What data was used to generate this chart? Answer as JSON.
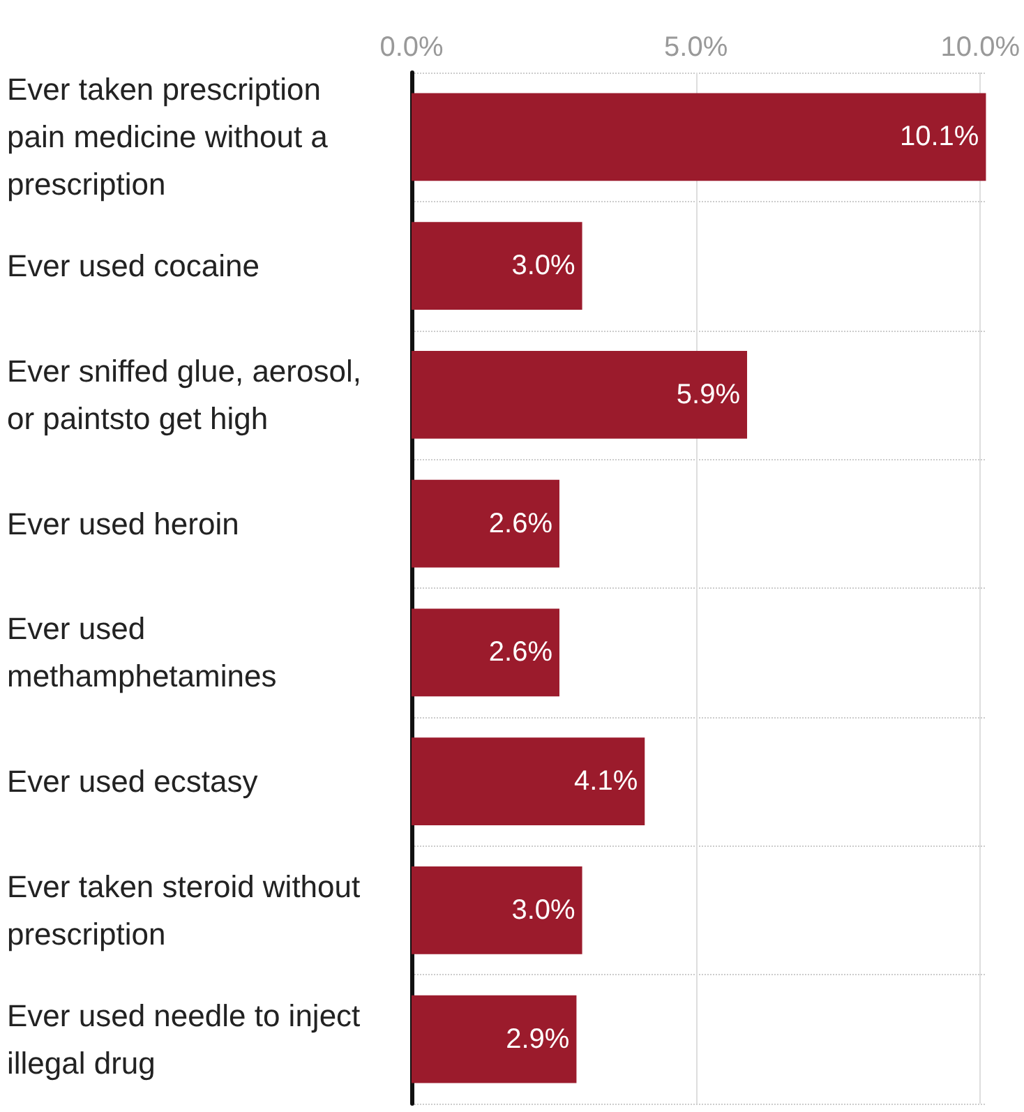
{
  "chart_data": {
    "type": "bar",
    "orientation": "horizontal",
    "categories": [
      "Ever taken prescription pain medicine without a prescription",
      "Ever used cocaine",
      "Ever sniffed glue, aerosol, or paintsto get high",
      "Ever used heroin",
      "Ever used methamphetamines",
      "Ever used ecstasy",
      "Ever taken steroid without prescription",
      "Ever used needle to inject illegal drug"
    ],
    "values": [
      10.1,
      3.0,
      5.9,
      2.6,
      2.6,
      4.1,
      3.0,
      2.9
    ],
    "value_labels": [
      "10.1%",
      "3.0%",
      "5.9%",
      "2.6%",
      "2.6%",
      "4.1%",
      "3.0%",
      "2.9%"
    ],
    "color": "#9b1b2c",
    "xlim": [
      0,
      10.1
    ],
    "xticks": [
      {
        "value": 0,
        "label": "0.0%"
      },
      {
        "value": 5,
        "label": "5.0%"
      },
      {
        "value": 10,
        "label": "10.0%"
      }
    ],
    "grid": true
  }
}
